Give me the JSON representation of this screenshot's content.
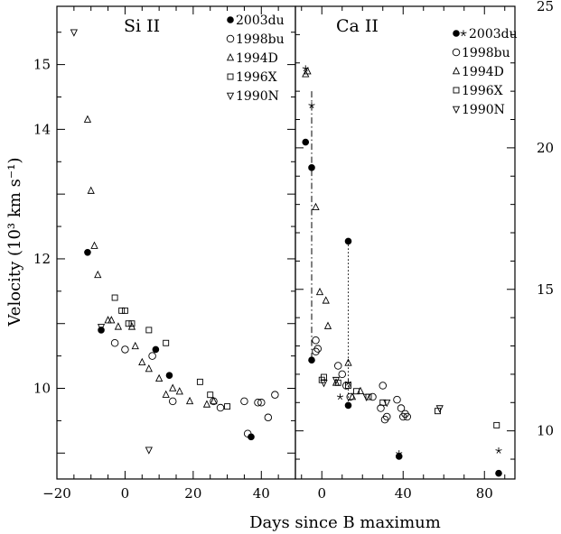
{
  "chart_data": [
    {
      "type": "scatter",
      "title": "Si II",
      "xlabel": "Days since B maximum",
      "ylabel": "Velocity (10³ km s⁻¹)",
      "xlim": [
        -20,
        50
      ],
      "ylim": [
        8.6,
        15.9
      ],
      "x_ticks": [
        -20,
        0,
        20,
        40
      ],
      "y_ticks": [
        10,
        12,
        14,
        15
      ],
      "y_tick_labels": [
        "10",
        "12",
        "14",
        "15"
      ],
      "legend_position": "top-right",
      "series": [
        {
          "name": "2003du",
          "marker": "filled-circle",
          "points": [
            [
              -11,
              12.1
            ],
            [
              -7,
              10.9
            ],
            [
              9,
              10.6
            ],
            [
              13,
              10.2
            ],
            [
              37,
              9.25
            ]
          ]
        },
        {
          "name": "1998bu",
          "marker": "open-circle",
          "points": [
            [
              -3,
              10.7
            ],
            [
              0,
              10.6
            ],
            [
              8,
              10.5
            ],
            [
              14,
              9.8
            ],
            [
              26,
              9.8
            ],
            [
              28,
              9.7
            ],
            [
              35,
              9.8
            ],
            [
              36,
              9.3
            ],
            [
              39,
              9.78
            ],
            [
              40,
              9.78
            ],
            [
              42,
              9.55
            ],
            [
              44,
              9.9
            ]
          ]
        },
        {
          "name": "1994D",
          "marker": "triangle-up",
          "points": [
            [
              -11,
              14.15
            ],
            [
              -10,
              13.05
            ],
            [
              -9,
              12.2
            ],
            [
              -8,
              11.75
            ],
            [
              -5,
              11.05
            ],
            [
              -4,
              11.05
            ],
            [
              -2,
              10.95
            ],
            [
              2,
              10.95
            ],
            [
              3,
              10.65
            ],
            [
              5,
              10.4
            ],
            [
              7,
              10.3
            ],
            [
              10,
              10.15
            ],
            [
              12,
              9.9
            ],
            [
              14,
              10.0
            ],
            [
              16,
              9.95
            ],
            [
              19,
              9.8
            ],
            [
              24,
              9.75
            ],
            [
              26,
              9.8
            ]
          ]
        },
        {
          "name": "1996X",
          "marker": "open-square",
          "points": [
            [
              -3,
              11.4
            ],
            [
              -1,
              11.2
            ],
            [
              0,
              11.2
            ],
            [
              1,
              11.0
            ],
            [
              2,
              11.0
            ],
            [
              7,
              10.9
            ],
            [
              12,
              10.7
            ],
            [
              22,
              10.1
            ],
            [
              25,
              9.9
            ],
            [
              30,
              9.72
            ]
          ]
        },
        {
          "name": "1990N",
          "marker": "triangle-down",
          "points": [
            [
              -15,
              15.5
            ],
            [
              -7,
              10.95
            ],
            [
              7,
              9.05
            ]
          ]
        }
      ]
    },
    {
      "type": "scatter",
      "title": "Ca II",
      "xlabel": "Days since B maximum",
      "ylabel": "",
      "xlim": [
        -13,
        95
      ],
      "ylim": [
        8.3,
        25
      ],
      "x_ticks": [
        0,
        40,
        80
      ],
      "y_ticks": [
        10,
        15,
        20,
        25
      ],
      "legend_position": "top-right",
      "series": [
        {
          "name": "2003du",
          "marker": "filled-circle",
          "points": [
            [
              -8,
              20.2
            ],
            [
              -5,
              19.3
            ],
            [
              -5,
              12.5
            ],
            [
              13,
              16.7
            ],
            [
              13,
              10.9
            ],
            [
              38,
              9.1
            ],
            [
              87,
              8.5
            ]
          ]
        },
        {
          "name": "2003du (star)",
          "marker": "star",
          "points": [
            [
              -8,
              22.8
            ],
            [
              -5,
              21.5
            ],
            [
              9,
              11.2
            ],
            [
              13,
              11.7
            ],
            [
              38,
              9.2
            ],
            [
              87,
              9.3
            ]
          ]
        },
        {
          "name": "1998bu",
          "marker": "open-circle",
          "points": [
            [
              -3,
              13.2
            ],
            [
              -3,
              12.8
            ],
            [
              -2,
              12.9
            ],
            [
              8,
              12.3
            ],
            [
              10,
              12.0
            ],
            [
              12,
              11.6
            ],
            [
              14,
              11.2
            ],
            [
              25,
              11.2
            ],
            [
              29,
              10.8
            ],
            [
              30,
              11.6
            ],
            [
              31,
              10.4
            ],
            [
              32,
              10.5
            ],
            [
              37,
              11.1
            ],
            [
              39,
              10.8
            ],
            [
              40,
              10.5
            ],
            [
              41,
              10.6
            ],
            [
              42,
              10.5
            ]
          ]
        },
        {
          "name": "1994D",
          "marker": "triangle-up",
          "points": [
            [
              -8,
              22.6
            ],
            [
              -7,
              22.7
            ],
            [
              -3,
              17.9
            ],
            [
              -1,
              14.9
            ],
            [
              2,
              14.6
            ],
            [
              3,
              13.7
            ],
            [
              7,
              11.7
            ],
            [
              13,
              12.4
            ],
            [
              15,
              11.2
            ],
            [
              19,
              11.4
            ]
          ]
        },
        {
          "name": "1996X",
          "marker": "open-square",
          "points": [
            [
              0,
              11.8
            ],
            [
              1,
              11.9
            ],
            [
              8,
              11.7
            ],
            [
              13,
              11.6
            ],
            [
              17,
              11.4
            ],
            [
              23,
              11.2
            ],
            [
              30,
              11.0
            ],
            [
              57,
              10.7
            ],
            [
              86,
              10.2
            ]
          ]
        },
        {
          "name": "1990N",
          "marker": "triangle-down",
          "points": [
            [
              1,
              11.7
            ],
            [
              7,
              11.8
            ],
            [
              22,
              11.2
            ],
            [
              32,
              11.0
            ],
            [
              58,
              10.8
            ]
          ]
        }
      ],
      "lines": [
        {
          "style": "dash-dot",
          "points": [
            [
              -5,
              22.0
            ],
            [
              -5,
              12.5
            ]
          ]
        },
        {
          "style": "dotted",
          "points": [
            [
              13,
              16.7
            ],
            [
              13,
              10.9
            ]
          ]
        }
      ]
    }
  ]
}
